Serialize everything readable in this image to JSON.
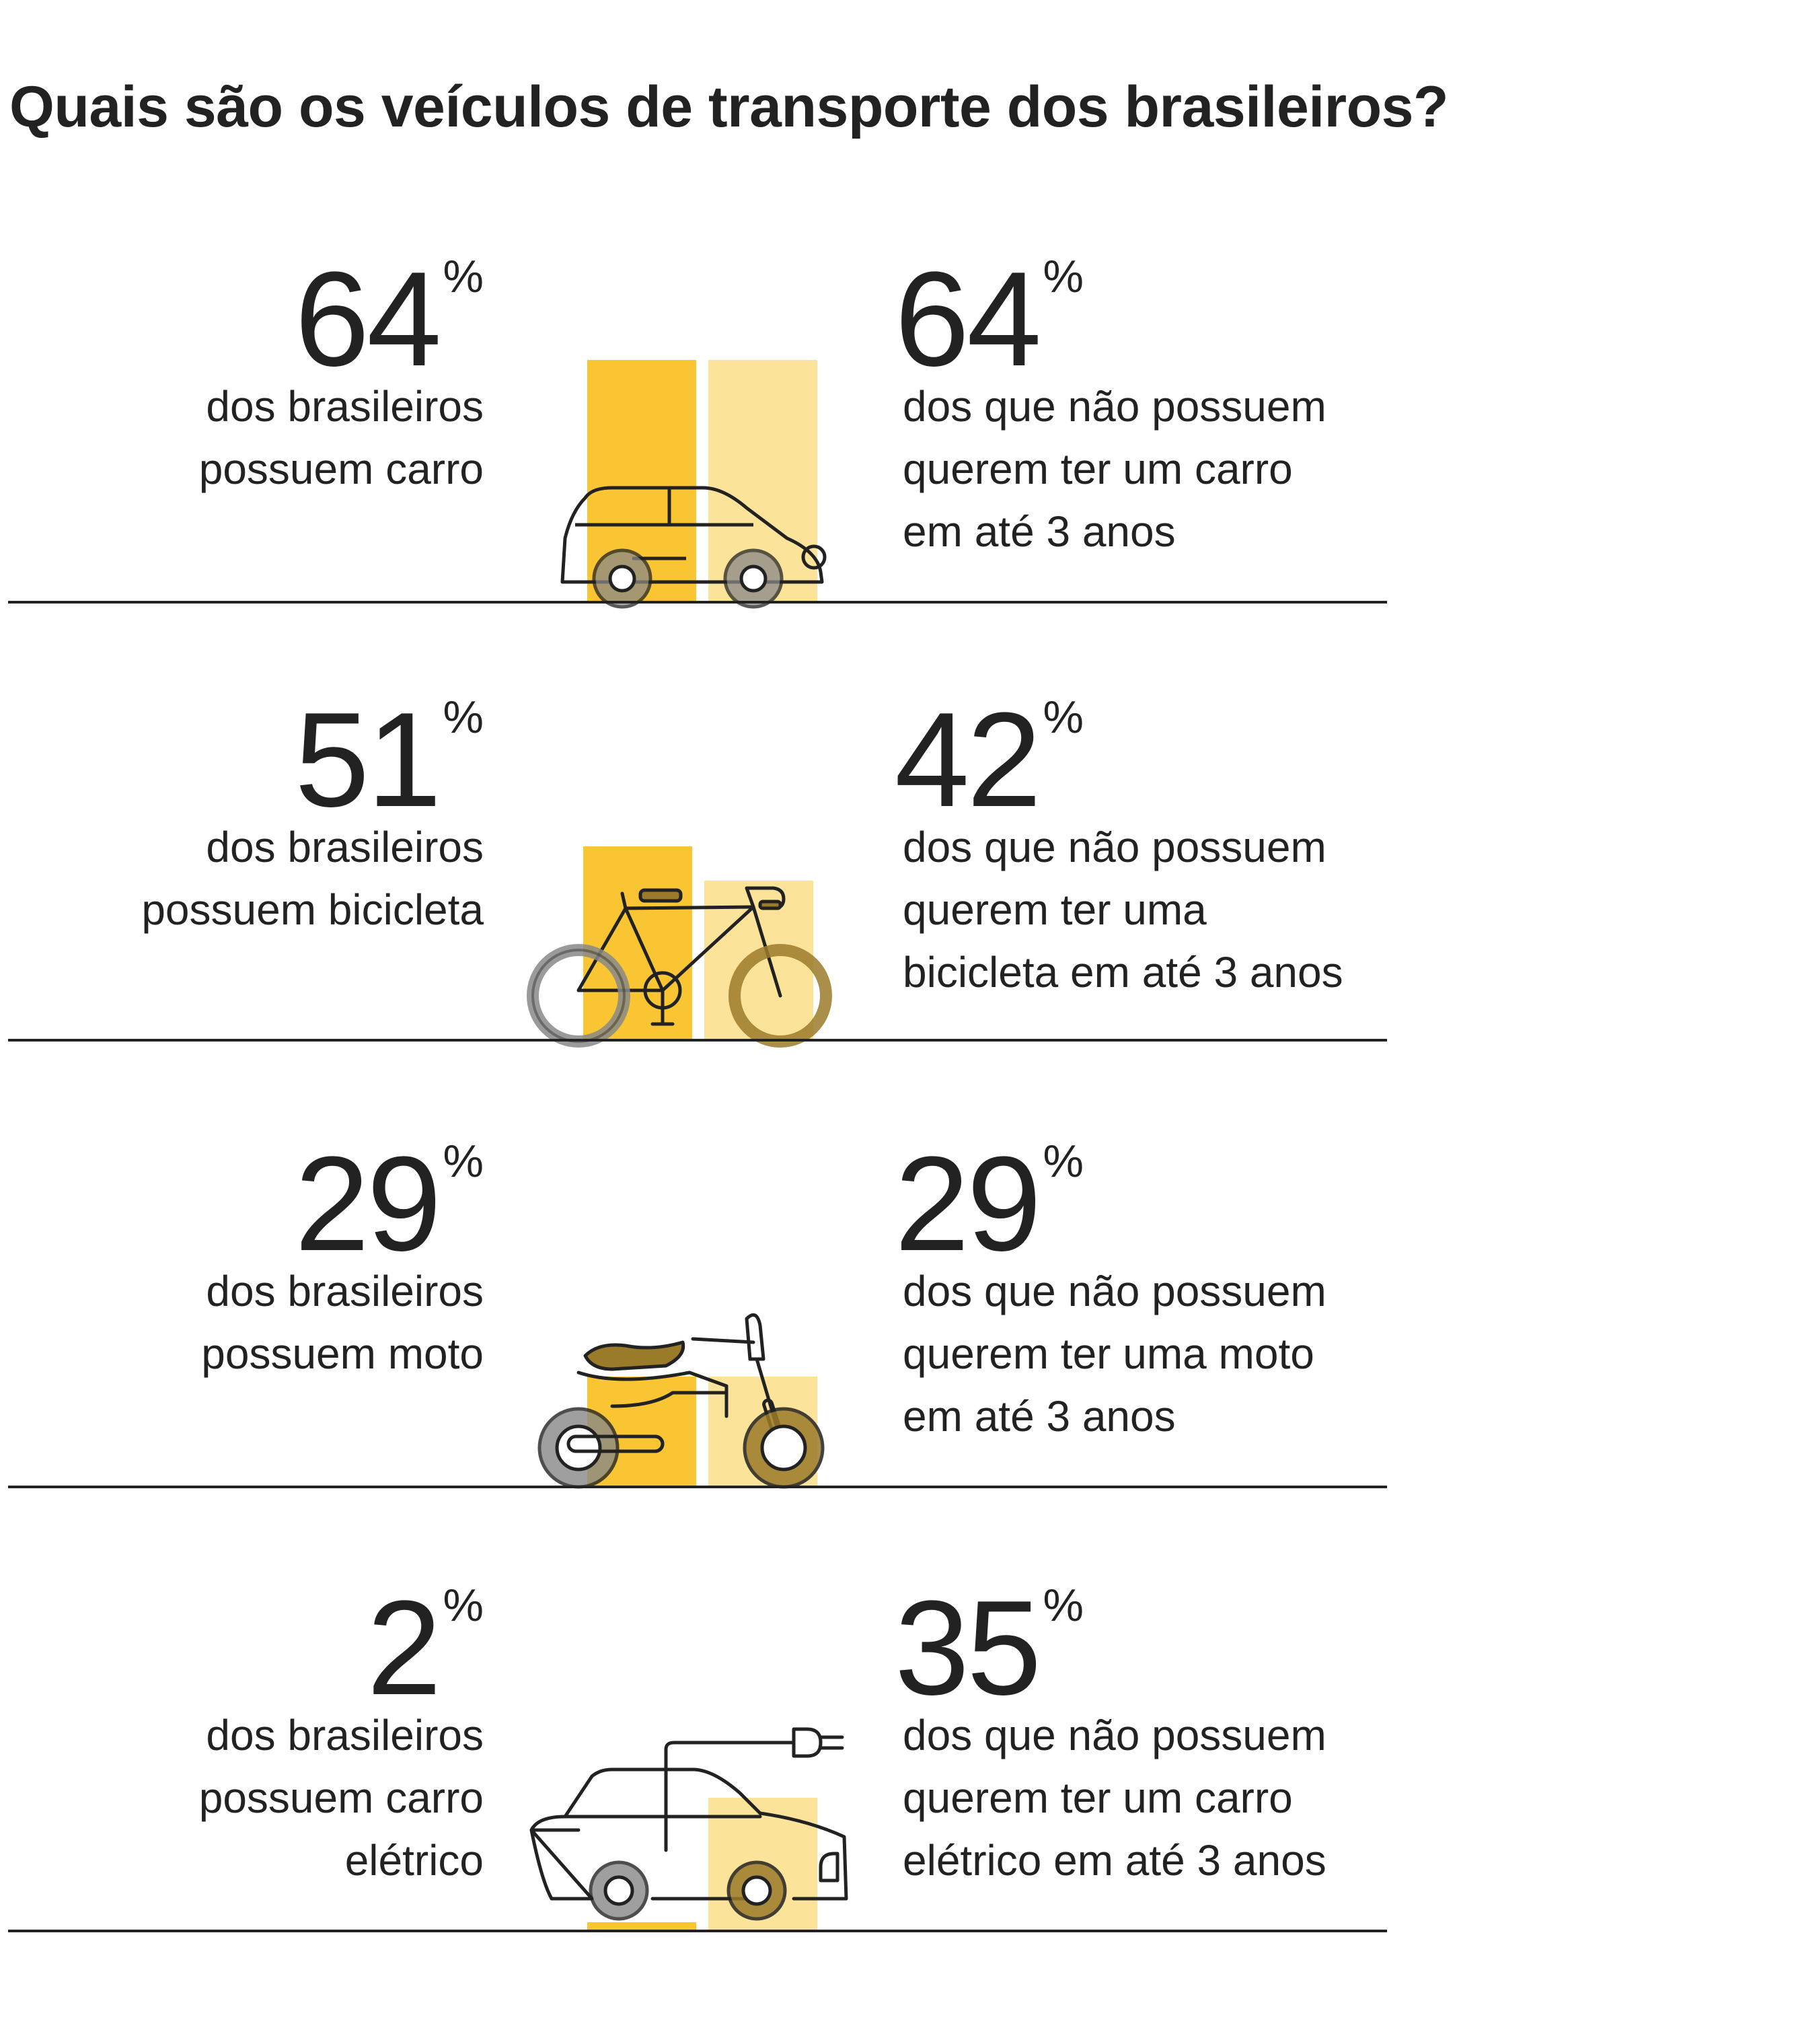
{
  "title": "Quais são os veículos de transporte dos brasileiros?",
  "colors": {
    "own_bar": "#F9C532",
    "want_bar": "#FCE39A",
    "text": "#222222",
    "wheel": "#888888"
  },
  "chart_data": {
    "type": "bar",
    "title": "Quais são os veículos de transporte dos brasileiros?",
    "categories": [
      "carro",
      "bicicleta",
      "moto",
      "carro elétrico"
    ],
    "series": [
      {
        "name": "dos brasileiros possuem",
        "values": [
          64,
          51,
          29,
          2
        ]
      },
      {
        "name": "dos que não possuem querem ter em até 3 anos",
        "values": [
          64,
          42,
          29,
          35
        ]
      }
    ],
    "ylim": [
      0,
      100
    ],
    "unit": "%"
  },
  "rows": [
    {
      "icon": "car-icon",
      "left": {
        "value": "64",
        "unit": "%",
        "line1": "dos brasileiros",
        "line2": "possuem carro",
        "line3": ""
      },
      "right": {
        "value": "64",
        "unit": "%",
        "line1": "dos que não possuem",
        "line2": "querem ter um carro",
        "line3": "em até 3 anos"
      }
    },
    {
      "icon": "bicycle-icon",
      "left": {
        "value": "51",
        "unit": "%",
        "line1": "dos brasileiros",
        "line2": "possuem bicicleta",
        "line3": ""
      },
      "right": {
        "value": "42",
        "unit": "%",
        "line1": "dos que não possuem",
        "line2": "querem ter uma",
        "line3": "bicicleta em até 3 anos"
      }
    },
    {
      "icon": "motorcycle-icon",
      "left": {
        "value": "29",
        "unit": "%",
        "line1": "dos brasileiros",
        "line2": "possuem moto",
        "line3": ""
      },
      "right": {
        "value": "29",
        "unit": "%",
        "line1": "dos que não possuem",
        "line2": "querem ter uma moto",
        "line3": "em até 3 anos"
      }
    },
    {
      "icon": "electric-car-icon",
      "left": {
        "value": "2",
        "unit": "%",
        "line1": "dos brasileiros",
        "line2": "possuem carro",
        "line3": "elétrico"
      },
      "right": {
        "value": "35",
        "unit": "%",
        "line1": "dos que não possuem",
        "line2": "querem ter um carro",
        "line3": "elétrico em até 3 anos"
      }
    }
  ]
}
